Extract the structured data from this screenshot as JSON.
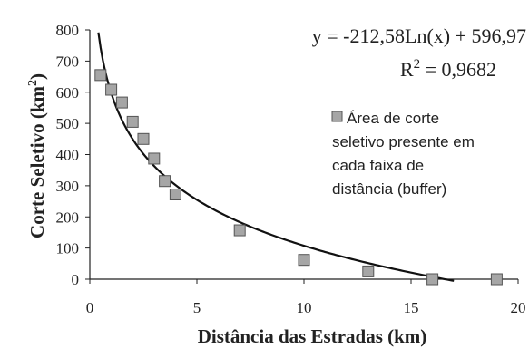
{
  "chart_data": {
    "type": "scatter",
    "xlabel": "Distância das Estradas (km)",
    "ylabel": "Corte Seletivo (km",
    "ylabel_sup": "2",
    "ylabel_close": ")",
    "xlim": [
      0,
      20
    ],
    "ylim": [
      0,
      800
    ],
    "xticks": [
      0,
      5,
      10,
      15,
      20
    ],
    "yticks": [
      0,
      100,
      200,
      300,
      400,
      500,
      600,
      700,
      800
    ],
    "grid": false,
    "legend_position": "right",
    "series": [
      {
        "name": "Área de corte seletivo presente em cada faixa de distância (buffer)",
        "marker": "square",
        "marker_color": "#a6a6a6",
        "points": [
          {
            "x": 0.5,
            "y": 655
          },
          {
            "x": 1.0,
            "y": 608
          },
          {
            "x": 1.5,
            "y": 567
          },
          {
            "x": 2.0,
            "y": 505
          },
          {
            "x": 2.5,
            "y": 450
          },
          {
            "x": 3.0,
            "y": 387
          },
          {
            "x": 3.5,
            "y": 315
          },
          {
            "x": 4.0,
            "y": 272
          },
          {
            "x": 7.0,
            "y": 157
          },
          {
            "x": 10.0,
            "y": 62
          },
          {
            "x": 13.0,
            "y": 25
          },
          {
            "x": 16.0,
            "y": 0
          },
          {
            "x": 19.0,
            "y": 0
          }
        ]
      }
    ],
    "trendline": {
      "type": "logarithmic",
      "a": -212.58,
      "b": 596.97,
      "x_range": [
        0.4,
        17.0
      ],
      "color": "#111111"
    },
    "annotations": {
      "equation": "y = -212,58Ln(x) + 596,97",
      "r2_prefix": "R",
      "r2_sup": "2",
      "r2_value": " = 0,9682"
    },
    "legend_lines": [
      "Área de corte",
      "seletivo presente em",
      "cada faixa de",
      "distância (buffer)"
    ]
  }
}
